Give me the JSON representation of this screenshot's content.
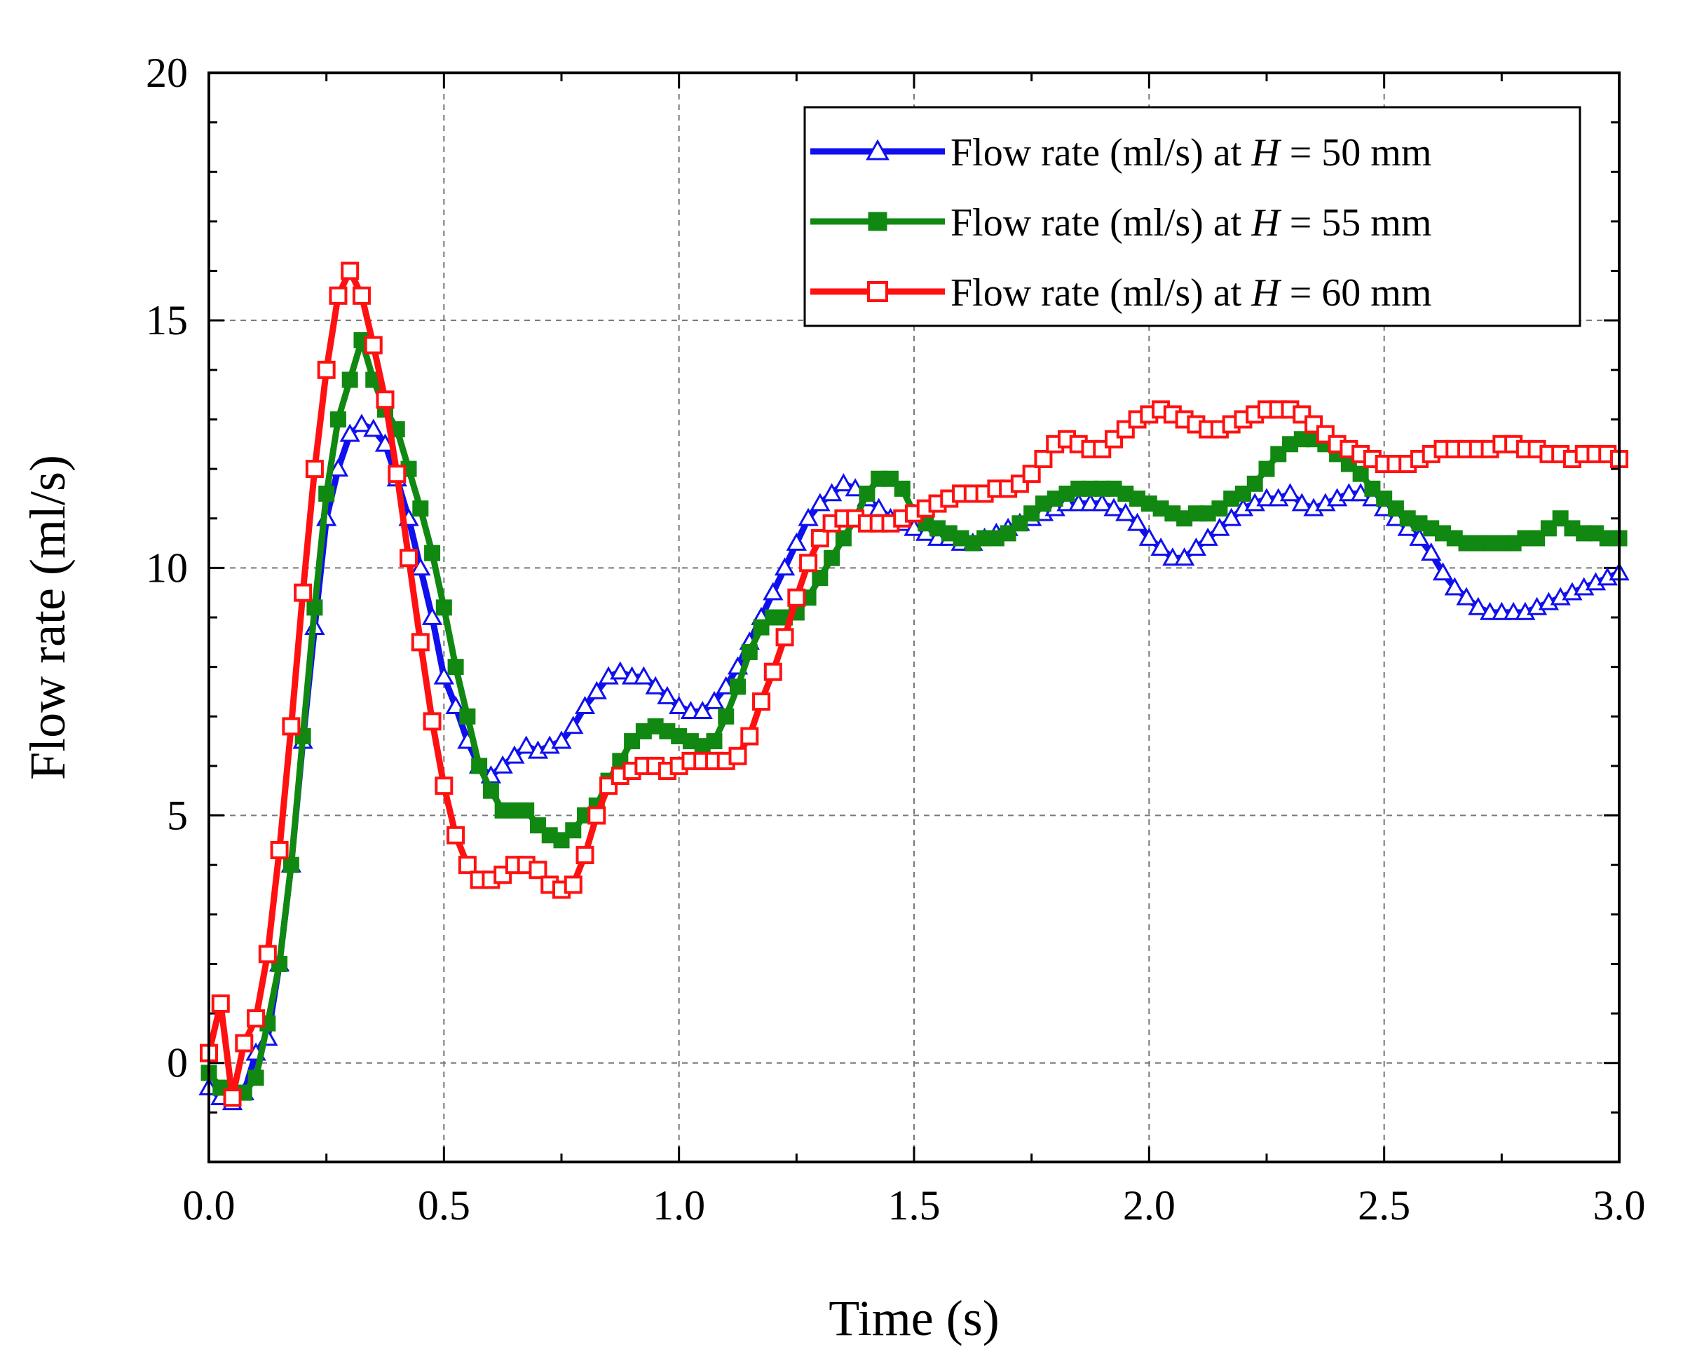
{
  "chart_data": {
    "type": "line",
    "title": "",
    "xlabel": "Time (s)",
    "ylabel": "Flow rate (ml/s)",
    "xlim": [
      0,
      3
    ],
    "ylim": [
      -2,
      20
    ],
    "grid": true,
    "legend_position": "top-right",
    "x_tick_labels": [
      "0.0",
      "0.5",
      "1.0",
      "1.5",
      "2.0",
      "2.5",
      "3.0"
    ],
    "y_tick_labels": [
      "0",
      "5",
      "10",
      "15",
      "20"
    ],
    "series": [
      {
        "name": "H = 50 mm",
        "legend": {
          "prefix": "Flow rate (ml/s) at ",
          "var": "H",
          "suffix": " = 50 mm"
        },
        "color": "#1010ee",
        "marker": "open-triangle",
        "marker_color": "#1010ee",
        "x": [
          0.0,
          0.025,
          0.05,
          0.075,
          0.1,
          0.125,
          0.15,
          0.175,
          0.2,
          0.225,
          0.25,
          0.275,
          0.3,
          0.325,
          0.35,
          0.375,
          0.4,
          0.425,
          0.45,
          0.475,
          0.5,
          0.525,
          0.55,
          0.575,
          0.6,
          0.625,
          0.65,
          0.675,
          0.7,
          0.725,
          0.75,
          0.775,
          0.8,
          0.825,
          0.85,
          0.875,
          0.9,
          0.925,
          0.95,
          0.975,
          1.0,
          1.025,
          1.05,
          1.075,
          1.1,
          1.125,
          1.15,
          1.175,
          1.2,
          1.225,
          1.25,
          1.275,
          1.3,
          1.325,
          1.35,
          1.375,
          1.4,
          1.425,
          1.45,
          1.475,
          1.5,
          1.525,
          1.55,
          1.575,
          1.6,
          1.625,
          1.65,
          1.675,
          1.7,
          1.725,
          1.75,
          1.775,
          1.8,
          1.825,
          1.85,
          1.875,
          1.9,
          1.925,
          1.95,
          1.975,
          2.0,
          2.025,
          2.05,
          2.075,
          2.1,
          2.125,
          2.15,
          2.175,
          2.2,
          2.225,
          2.25,
          2.275,
          2.3,
          2.325,
          2.35,
          2.375,
          2.4,
          2.425,
          2.45,
          2.475,
          2.5,
          2.525,
          2.55,
          2.575,
          2.6,
          2.625,
          2.65,
          2.675,
          2.7,
          2.725,
          2.75,
          2.775,
          2.8,
          2.825,
          2.85,
          2.875,
          2.9,
          2.925,
          2.95,
          2.975,
          3.0
        ],
        "y": [
          -0.5,
          -0.7,
          -0.8,
          -0.6,
          0.2,
          0.5,
          2.0,
          4.0,
          6.5,
          8.8,
          11.0,
          12.0,
          12.7,
          12.9,
          12.8,
          12.5,
          11.8,
          11.0,
          10.0,
          9.0,
          7.8,
          7.2,
          6.5,
          6.0,
          5.8,
          6.0,
          6.2,
          6.4,
          6.3,
          6.4,
          6.5,
          6.8,
          7.2,
          7.5,
          7.8,
          7.9,
          7.8,
          7.8,
          7.6,
          7.4,
          7.2,
          7.1,
          7.1,
          7.3,
          7.6,
          8.0,
          8.5,
          9.0,
          9.5,
          10.0,
          10.5,
          11.0,
          11.3,
          11.5,
          11.7,
          11.6,
          11.4,
          11.2,
          11.0,
          10.9,
          10.8,
          10.7,
          10.6,
          10.6,
          10.5,
          10.5,
          10.6,
          10.7,
          10.8,
          10.9,
          11.0,
          11.1,
          11.2,
          11.3,
          11.3,
          11.3,
          11.3,
          11.2,
          11.1,
          10.9,
          10.6,
          10.4,
          10.2,
          10.2,
          10.4,
          10.6,
          10.8,
          11.0,
          11.2,
          11.3,
          11.4,
          11.4,
          11.5,
          11.3,
          11.2,
          11.3,
          11.4,
          11.5,
          11.5,
          11.4,
          11.2,
          11.0,
          10.8,
          10.6,
          10.3,
          9.9,
          9.6,
          9.4,
          9.2,
          9.1,
          9.1,
          9.1,
          9.1,
          9.2,
          9.3,
          9.4,
          9.5,
          9.6,
          9.7,
          9.8,
          9.9
        ]
      },
      {
        "name": "H = 55 mm",
        "legend": {
          "prefix": "Flow rate (ml/s) at ",
          "var": "H",
          "suffix": " = 55 mm"
        },
        "color": "#118811",
        "marker": "filled-square",
        "marker_color": "#118811",
        "x": [
          0.0,
          0.025,
          0.05,
          0.075,
          0.1,
          0.125,
          0.15,
          0.175,
          0.2,
          0.225,
          0.25,
          0.275,
          0.3,
          0.325,
          0.35,
          0.375,
          0.4,
          0.425,
          0.45,
          0.475,
          0.5,
          0.525,
          0.55,
          0.575,
          0.6,
          0.625,
          0.65,
          0.675,
          0.7,
          0.725,
          0.75,
          0.775,
          0.8,
          0.825,
          0.85,
          0.875,
          0.9,
          0.925,
          0.95,
          0.975,
          1.0,
          1.025,
          1.05,
          1.075,
          1.1,
          1.125,
          1.15,
          1.175,
          1.2,
          1.225,
          1.25,
          1.275,
          1.3,
          1.325,
          1.35,
          1.375,
          1.4,
          1.425,
          1.45,
          1.475,
          1.5,
          1.525,
          1.55,
          1.575,
          1.6,
          1.625,
          1.65,
          1.675,
          1.7,
          1.725,
          1.75,
          1.775,
          1.8,
          1.825,
          1.85,
          1.875,
          1.9,
          1.925,
          1.95,
          1.975,
          2.0,
          2.025,
          2.05,
          2.075,
          2.1,
          2.125,
          2.15,
          2.175,
          2.2,
          2.225,
          2.25,
          2.275,
          2.3,
          2.325,
          2.35,
          2.375,
          2.4,
          2.425,
          2.45,
          2.475,
          2.5,
          2.525,
          2.55,
          2.575,
          2.6,
          2.625,
          2.65,
          2.675,
          2.7,
          2.725,
          2.75,
          2.775,
          2.8,
          2.825,
          2.85,
          2.875,
          2.9,
          2.925,
          2.95,
          2.975,
          3.0
        ],
        "y": [
          -0.2,
          -0.5,
          -0.7,
          -0.6,
          -0.3,
          0.8,
          2.0,
          4.0,
          6.6,
          9.2,
          11.5,
          13.0,
          13.8,
          14.6,
          13.8,
          13.2,
          12.8,
          12.0,
          11.2,
          10.3,
          9.2,
          8.0,
          7.0,
          6.0,
          5.5,
          5.1,
          5.1,
          5.1,
          4.8,
          4.6,
          4.5,
          4.7,
          5.0,
          5.2,
          5.7,
          6.1,
          6.5,
          6.7,
          6.8,
          6.7,
          6.6,
          6.5,
          6.4,
          6.5,
          7.0,
          7.6,
          8.3,
          8.8,
          9.0,
          9.0,
          9.1,
          9.4,
          9.8,
          10.2,
          10.6,
          11.0,
          11.5,
          11.8,
          11.8,
          11.6,
          11.1,
          10.9,
          10.8,
          10.7,
          10.6,
          10.5,
          10.6,
          10.6,
          10.7,
          10.9,
          11.1,
          11.3,
          11.4,
          11.5,
          11.6,
          11.6,
          11.6,
          11.6,
          11.5,
          11.4,
          11.3,
          11.2,
          11.1,
          11.0,
          11.1,
          11.1,
          11.2,
          11.4,
          11.5,
          11.7,
          12.0,
          12.3,
          12.5,
          12.6,
          12.6,
          12.5,
          12.3,
          12.1,
          11.9,
          11.6,
          11.4,
          11.2,
          11.0,
          10.9,
          10.8,
          10.7,
          10.6,
          10.5,
          10.5,
          10.5,
          10.5,
          10.5,
          10.6,
          10.6,
          10.8,
          11.0,
          10.8,
          10.7,
          10.7,
          10.6,
          10.6
        ]
      },
      {
        "name": "H = 60 mm",
        "legend": {
          "prefix": "Flow rate (ml/s) at ",
          "var": "H",
          "suffix": " = 60 mm"
        },
        "color": "#ff1111",
        "marker": "open-square",
        "marker_color": "#ff1111",
        "x": [
          0.0,
          0.025,
          0.05,
          0.075,
          0.1,
          0.125,
          0.15,
          0.175,
          0.2,
          0.225,
          0.25,
          0.275,
          0.3,
          0.325,
          0.35,
          0.375,
          0.4,
          0.425,
          0.45,
          0.475,
          0.5,
          0.525,
          0.55,
          0.575,
          0.6,
          0.625,
          0.65,
          0.675,
          0.7,
          0.725,
          0.75,
          0.775,
          0.8,
          0.825,
          0.85,
          0.875,
          0.9,
          0.925,
          0.95,
          0.975,
          1.0,
          1.025,
          1.05,
          1.075,
          1.1,
          1.125,
          1.15,
          1.175,
          1.2,
          1.225,
          1.25,
          1.275,
          1.3,
          1.325,
          1.35,
          1.375,
          1.4,
          1.425,
          1.45,
          1.475,
          1.5,
          1.525,
          1.55,
          1.575,
          1.6,
          1.625,
          1.65,
          1.675,
          1.7,
          1.725,
          1.75,
          1.775,
          1.8,
          1.825,
          1.85,
          1.875,
          1.9,
          1.925,
          1.95,
          1.975,
          2.0,
          2.025,
          2.05,
          2.075,
          2.1,
          2.125,
          2.15,
          2.175,
          2.2,
          2.225,
          2.25,
          2.275,
          2.3,
          2.325,
          2.35,
          2.375,
          2.4,
          2.425,
          2.45,
          2.475,
          2.5,
          2.525,
          2.55,
          2.575,
          2.6,
          2.625,
          2.65,
          2.675,
          2.7,
          2.725,
          2.75,
          2.775,
          2.8,
          2.825,
          2.85,
          2.875,
          2.9,
          2.925,
          2.95,
          2.975,
          3.0
        ],
        "y": [
          0.2,
          1.2,
          -0.7,
          0.4,
          0.9,
          2.2,
          4.3,
          6.8,
          9.5,
          12.0,
          14.0,
          15.5,
          16.0,
          15.5,
          14.5,
          13.4,
          11.9,
          10.2,
          8.5,
          6.9,
          5.6,
          4.6,
          4.0,
          3.7,
          3.7,
          3.8,
          4.0,
          4.0,
          3.9,
          3.6,
          3.5,
          3.6,
          4.2,
          5.0,
          5.6,
          5.8,
          5.9,
          6.0,
          6.0,
          5.9,
          6.0,
          6.1,
          6.1,
          6.1,
          6.1,
          6.2,
          6.6,
          7.3,
          7.9,
          8.6,
          9.4,
          10.1,
          10.6,
          10.9,
          11.0,
          11.0,
          10.9,
          10.9,
          10.9,
          11.0,
          11.1,
          11.2,
          11.3,
          11.4,
          11.5,
          11.5,
          11.5,
          11.6,
          11.6,
          11.7,
          11.9,
          12.2,
          12.5,
          12.6,
          12.5,
          12.4,
          12.4,
          12.6,
          12.8,
          13.0,
          13.1,
          13.2,
          13.1,
          13.0,
          12.9,
          12.8,
          12.8,
          12.9,
          13.0,
          13.1,
          13.2,
          13.2,
          13.2,
          13.1,
          12.9,
          12.7,
          12.5,
          12.4,
          12.3,
          12.2,
          12.1,
          12.1,
          12.1,
          12.2,
          12.3,
          12.4,
          12.4,
          12.4,
          12.4,
          12.4,
          12.5,
          12.5,
          12.4,
          12.4,
          12.3,
          12.3,
          12.2,
          12.3,
          12.3,
          12.3,
          12.2
        ]
      }
    ]
  }
}
